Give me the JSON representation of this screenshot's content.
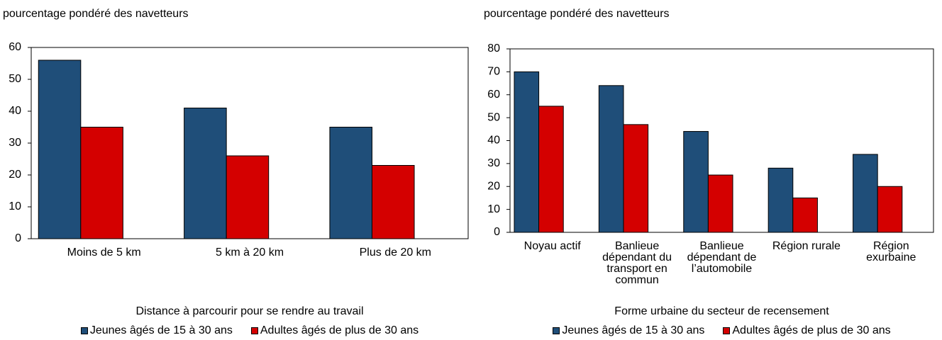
{
  "chart_data": [
    {
      "type": "bar",
      "y_label": "pourcentage pondéré des navetteurs",
      "x_label": "Distance à parcourir pour se rendre au travail",
      "categories": [
        "Moins de 5 km",
        "5 km à 20 km",
        "Plus de 20 km"
      ],
      "series": [
        {
          "name": "Jeunes âgés de 15 à 30 ans",
          "color": "#1f4e79",
          "values": [
            56,
            41,
            35
          ]
        },
        {
          "name": "Adultes âgés de plus de 30 ans",
          "color": "#d40000",
          "values": [
            35,
            26,
            23
          ]
        }
      ],
      "ylim": [
        0,
        60
      ],
      "yticks": [
        0,
        10,
        20,
        30,
        40,
        50,
        60
      ]
    },
    {
      "type": "bar",
      "y_label": "pourcentage pondéré des navetteurs",
      "x_label": "Forme urbaine du secteur de recensement",
      "categories": [
        "Noyau actif",
        "Banlieue dépendant du transport en commun",
        "Banlieue dépendant de l’automobile",
        "Région rurale",
        "Région exurbaine"
      ],
      "series": [
        {
          "name": "Jeunes âgés de 15 à 30 ans",
          "color": "#1f4e79",
          "values": [
            70,
            64,
            44,
            28,
            34
          ]
        },
        {
          "name": "Adultes âgés de plus de 30 ans",
          "color": "#d40000",
          "values": [
            55,
            47,
            25,
            15,
            20
          ]
        }
      ],
      "ylim": [
        0,
        80
      ],
      "yticks": [
        0,
        10,
        20,
        30,
        40,
        50,
        60,
        70,
        80
      ]
    }
  ]
}
